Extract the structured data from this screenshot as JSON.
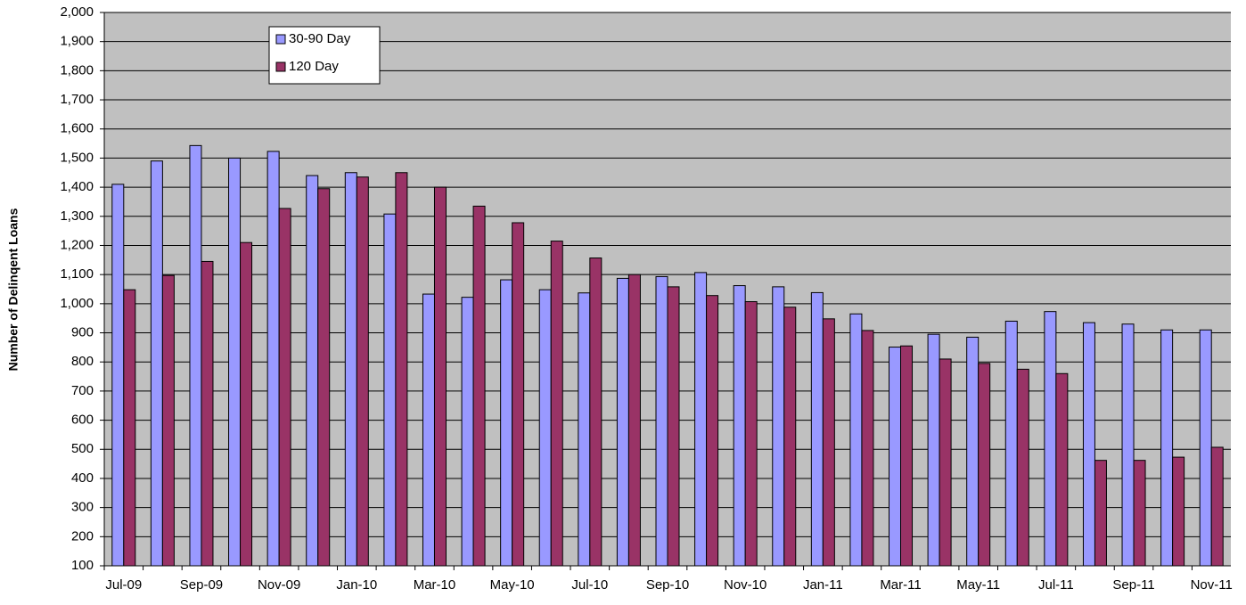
{
  "chart_data": {
    "type": "bar",
    "y_label": "Number of Delinqent Loans",
    "categories": [
      "Jul-09",
      null,
      "Sep-09",
      null,
      "Nov-09",
      null,
      "Jan-10",
      null,
      "Mar-10",
      null,
      "May-10",
      null,
      "Jul-10",
      null,
      "Sep-10",
      null,
      "Nov-10",
      null,
      "Jan-11",
      null,
      "Mar-11",
      null,
      "May-11",
      null,
      "Jul-11",
      null,
      "Sep-11",
      null,
      "Nov-11"
    ],
    "series": [
      {
        "name": "30-90 Day",
        "color": "#9999ff",
        "values": [
          1410,
          1490,
          1543,
          1500,
          1523,
          1440,
          1450,
          1308,
          1033,
          1022,
          1082,
          1048,
          1037,
          1087,
          1093,
          1107,
          1062,
          1058,
          1038,
          965,
          851,
          895,
          885,
          940,
          973,
          935,
          930,
          910,
          910
        ]
      },
      {
        "name": "120 Day",
        "color": "#993366",
        "values": [
          1048,
          1097,
          1145,
          1210,
          1327,
          1395,
          1435,
          1450,
          1400,
          1335,
          1278,
          1215,
          1157,
          1100,
          1058,
          1028,
          1007,
          988,
          948,
          908,
          855,
          810,
          795,
          775,
          760,
          462,
          462,
          473,
          507
        ]
      }
    ],
    "ylim": [
      100,
      2000
    ],
    "yticks": [
      100,
      200,
      300,
      400,
      500,
      600,
      700,
      800,
      900,
      {
        "value": 1000,
        "label": "1,000"
      },
      {
        "value": 1100,
        "label": "1,100"
      },
      {
        "value": 1200,
        "label": "1,200"
      },
      {
        "value": 1300,
        "label": "1,300"
      },
      {
        "value": 1400,
        "label": "1,400"
      },
      {
        "value": 1500,
        "label": "1,500"
      },
      {
        "value": 1600,
        "label": "1,600"
      },
      {
        "value": 1700,
        "label": "1,700"
      },
      {
        "value": 1800,
        "label": "1,800"
      },
      {
        "value": 1900,
        "label": "1,900"
      },
      {
        "value": 2000,
        "label": "2,000"
      }
    ],
    "grid": true,
    "plot_background": "#c0c0c0",
    "legend": "top-left"
  }
}
